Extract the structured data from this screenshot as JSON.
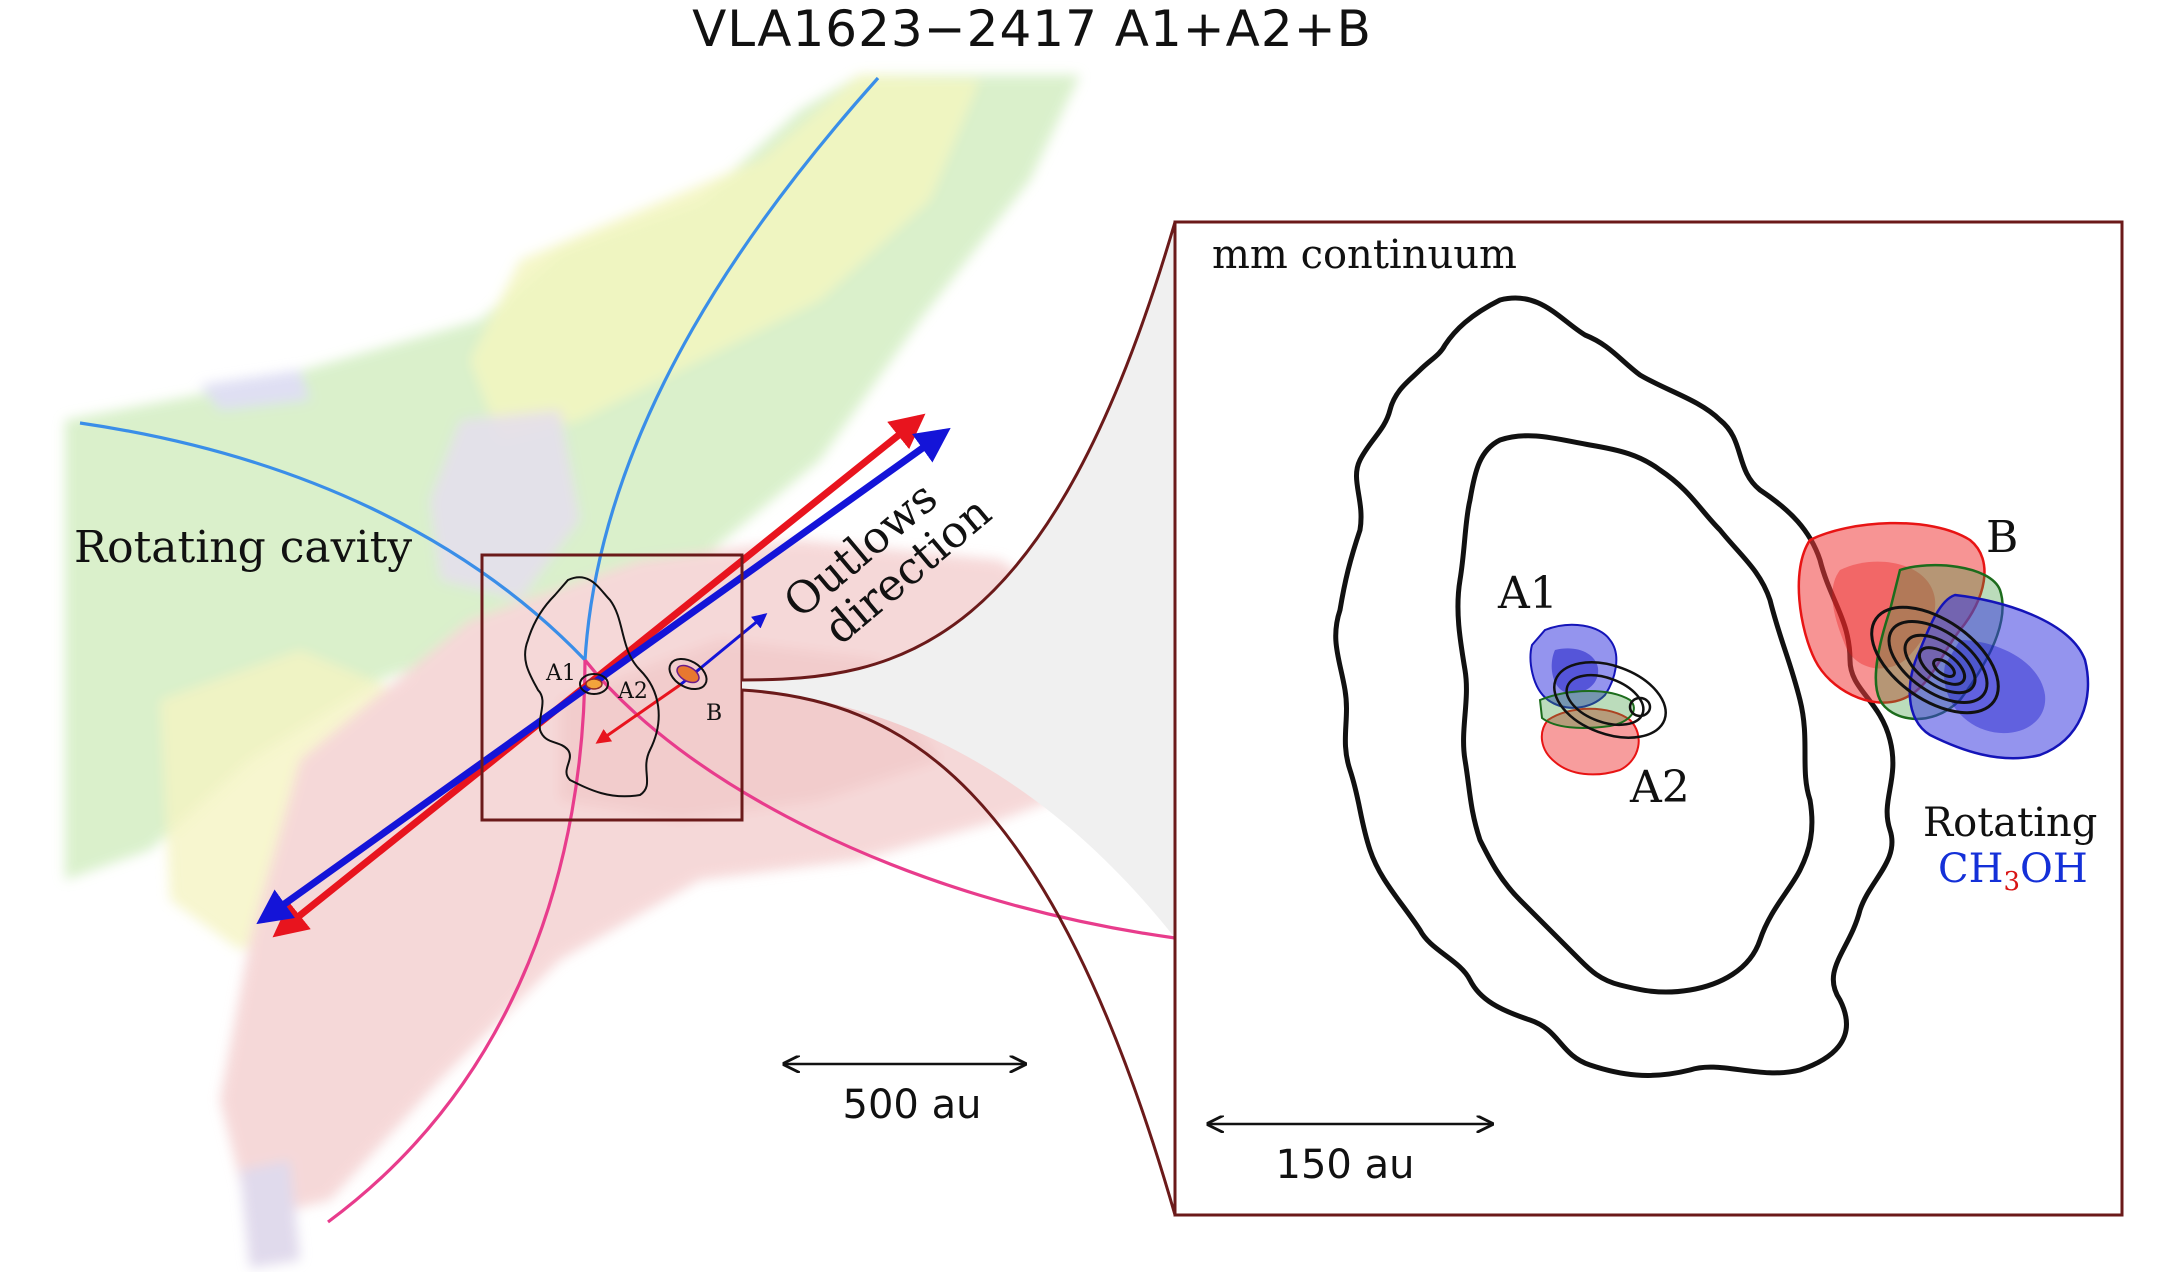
{
  "title": "VLA1623−2417 A1+A2+B",
  "left_panel": {
    "label_rotating_cavity": "Rotating cavity",
    "label_outflows_line1": "Outlows",
    "label_outflows_line2": "direction",
    "source_a1": "A1",
    "source_a2": "A2",
    "source_b": "B",
    "scale_bar": "500 au"
  },
  "inset": {
    "label_continuum": "mm continuum",
    "source_a1": "A1",
    "source_a2": "A2",
    "source_b": "B",
    "rotating_line1": "Rotating",
    "ch3oh_c": "CH",
    "ch3oh_sub": "3",
    "ch3oh_oh": "OH",
    "scale_bar": "150 au"
  },
  "colors": {
    "frame": "#6b1a1a",
    "outflow_red": "#e8141e",
    "outflow_blue": "#1414d8",
    "cavity_blue": "#3a8ee8",
    "cavity_pink": "#e83c8c",
    "label_red": "#d81414",
    "label_blue": "#1430d8"
  }
}
